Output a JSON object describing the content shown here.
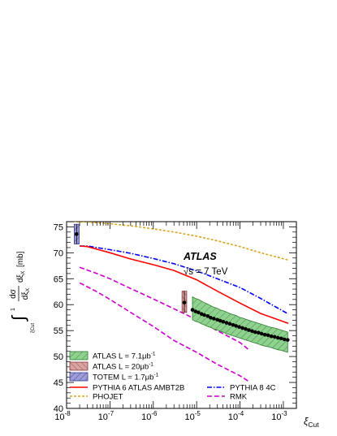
{
  "chart_data": {
    "type": "line",
    "title": "",
    "experiment_label": "ATLAS",
    "energy_label": "√s = 7 TeV",
    "xlabel": "ξ",
    "xlabel_sub": "Cut",
    "ylabel": "∫ dσ/dξX dξX [mb]",
    "ylabel_integral_upper": "1",
    "ylabel_integral_lower": "ξCut",
    "ylabel_unit": "[mb]",
    "x_scale": "log",
    "xlim": [
      1e-08,
      0.002
    ],
    "ylim": [
      40,
      76
    ],
    "x_ticks": [
      {
        "value": 1e-08,
        "label": "10",
        "exp": "-8"
      },
      {
        "value": 1e-07,
        "label": "10",
        "exp": "-7"
      },
      {
        "value": 1e-06,
        "label": "10",
        "exp": "-6"
      },
      {
        "value": 1e-05,
        "label": "10",
        "exp": "-5"
      },
      {
        "value": 0.0001,
        "label": "10",
        "exp": "-4"
      },
      {
        "value": 0.001,
        "label": "10",
        "exp": "-3"
      }
    ],
    "y_ticks": [
      40,
      45,
      50,
      55,
      60,
      65,
      70,
      75
    ],
    "grid": false,
    "legend_position": "bottom-left",
    "legend": [
      {
        "label": "ATLAS L = 7.1μb",
        "sup": "-1",
        "kind": "box",
        "fill": "#8fd18f",
        "stroke": "#2f7a2f",
        "hatch": true
      },
      {
        "label": "ATLAS L = 20μb",
        "sup": "-1",
        "kind": "box",
        "fill": "#d8a3a3",
        "stroke": "#8a3a3a",
        "hatch": true
      },
      {
        "label": "TOTEM L = 1.7μb",
        "sup": "-1",
        "kind": "box",
        "fill": "#9d9dd8",
        "stroke": "#3a3a8a",
        "hatch": true
      },
      {
        "label": "PYTHIA 6 ATLAS AMBT2B",
        "sup": "",
        "kind": "line",
        "color": "#ff0000",
        "dash": "",
        "column": 0
      },
      {
        "label": "PYTHIA 8 4C",
        "sup": "",
        "kind": "line",
        "color": "#0000ff",
        "dash": "6,2,1.5,2",
        "column": 1
      },
      {
        "label": "PHOJET",
        "sup": "",
        "kind": "line",
        "color": "#daa520",
        "dash": "3,2",
        "column": 0
      },
      {
        "label": "RMK",
        "sup": "",
        "kind": "line",
        "color": "#cc00cc",
        "dash": "6,3",
        "column": 1
      }
    ],
    "series": [
      {
        "name": "PHOJET",
        "color": "#daa520",
        "dash": "3,2",
        "width": 1.6,
        "x": [
          1.5e-08,
          3e-08,
          1e-07,
          3e-07,
          1e-06,
          3e-06,
          1e-05,
          3e-05,
          0.0001,
          0.0003,
          0.0013
        ],
        "y": [
          76.0,
          75.9,
          75.6,
          75.2,
          74.6,
          74.0,
          73.2,
          72.3,
          71.2,
          70.0,
          68.6
        ]
      },
      {
        "name": "PYTHIA 8 4C",
        "color": "#0000ff",
        "dash": "6,2,1.5,2",
        "width": 1.6,
        "x": [
          2e-08,
          3e-08,
          1e-07,
          3e-07,
          1e-06,
          3e-06,
          1e-05,
          3e-05,
          0.0001,
          0.0003,
          0.0013
        ],
        "y": [
          71.3,
          71.3,
          70.6,
          69.9,
          68.9,
          67.9,
          66.5,
          65.0,
          63.3,
          61.2,
          58.2
        ]
      },
      {
        "name": "PYTHIA 6 ATLAS AMBT2B",
        "color": "#ff0000",
        "dash": "",
        "width": 1.6,
        "x": [
          2e-08,
          3e-08,
          1e-07,
          3e-07,
          1e-06,
          3e-06,
          1e-05,
          3e-05,
          0.0001,
          0.0003,
          0.0013
        ],
        "y": [
          71.3,
          71.2,
          70.0,
          68.8,
          67.7,
          66.6,
          64.8,
          62.6,
          60.3,
          58.3,
          56.4
        ]
      },
      {
        "name": "RMK",
        "color": "#cc00cc",
        "dash": "6,3",
        "width": 1.6,
        "x": [
          2e-08,
          5e-08,
          1e-07,
          3e-07,
          1e-06,
          3e-06,
          1e-05,
          3e-05,
          0.0001,
          0.00016
        ],
        "y": [
          67.2,
          66.0,
          65.0,
          63.1,
          61.1,
          59.2,
          57.1,
          55.0,
          52.7,
          51.3
        ]
      },
      {
        "name": "RMK (lower)",
        "color": "#cc00cc",
        "dash": "6,3",
        "width": 1.6,
        "x": [
          2e-08,
          5e-08,
          1e-07,
          3e-07,
          1e-06,
          3e-06,
          1e-05,
          3e-05,
          0.0001,
          0.00016
        ],
        "y": [
          64.2,
          62.5,
          61.0,
          58.5,
          55.8,
          53.1,
          50.8,
          48.5,
          46.3,
          45.2
        ]
      }
    ],
    "atlas_points": {
      "x": [
        8e-06,
        9.4e-06,
        1.1e-05,
        1.3e-05,
        1.5e-05,
        1.8e-05,
        2.1e-05,
        2.5e-05,
        3e-05,
        3.5e-05,
        4.1e-05,
        4.9e-05,
        5.8e-05,
        6.9e-05,
        8.1e-05,
        9.6e-05,
        0.000114,
        0.000135,
        0.00016,
        0.00019,
        0.000225,
        0.000267,
        0.000316,
        0.000375,
        0.000445,
        0.00053,
        0.00063,
        0.00075,
        0.00089,
        0.00106,
        0.00126
      ],
      "y": [
        59.0,
        58.7,
        58.5,
        58.2,
        58.0,
        57.8,
        57.5,
        57.3,
        57.1,
        56.9,
        56.7,
        56.5,
        56.3,
        56.1,
        55.9,
        55.7,
        55.5,
        55.3,
        55.1,
        54.9,
        54.7,
        54.6,
        54.4,
        54.2,
        54.1,
        53.9,
        53.8,
        53.6,
        53.5,
        53.3,
        53.2
      ],
      "band_upper": [
        61.5,
        61.2,
        61.0,
        60.7,
        60.4,
        60.1,
        59.8,
        59.5,
        59.3,
        59.0,
        58.8,
        58.6,
        58.3,
        58.1,
        57.9,
        57.6,
        57.4,
        57.2,
        57.0,
        56.8,
        56.6,
        56.4,
        56.2,
        56.0,
        55.8,
        55.6,
        55.5,
        55.3,
        55.1,
        54.9,
        54.7
      ],
      "band_lower": [
        57.1,
        56.8,
        56.6,
        56.3,
        56.1,
        55.8,
        55.6,
        55.3,
        55.1,
        54.9,
        54.7,
        54.4,
        54.2,
        54.0,
        53.8,
        53.6,
        53.4,
        53.2,
        53.0,
        52.8,
        52.6,
        52.4,
        52.2,
        52.0,
        51.9,
        51.7,
        51.5,
        51.3,
        51.2,
        51.0,
        50.8
      ],
      "fill": "#8fd18f",
      "stroke": "#2f7a2f"
    },
    "atlas_20": {
      "x": 5.2e-06,
      "y": 60.4,
      "low": 58.5,
      "high": 62.6,
      "x_lo": 4.6e-06,
      "x_hi": 5.9e-06,
      "fill": "#d8a3a3",
      "stroke": "#8a3a3a"
    },
    "totem": {
      "x": 1.7e-08,
      "y": 73.6,
      "low": 71.7,
      "high": 75.5,
      "x_lo": 1.5e-08,
      "x_hi": 1.95e-08,
      "fill": "#9d9dd8",
      "stroke": "#3a3a8a"
    }
  }
}
